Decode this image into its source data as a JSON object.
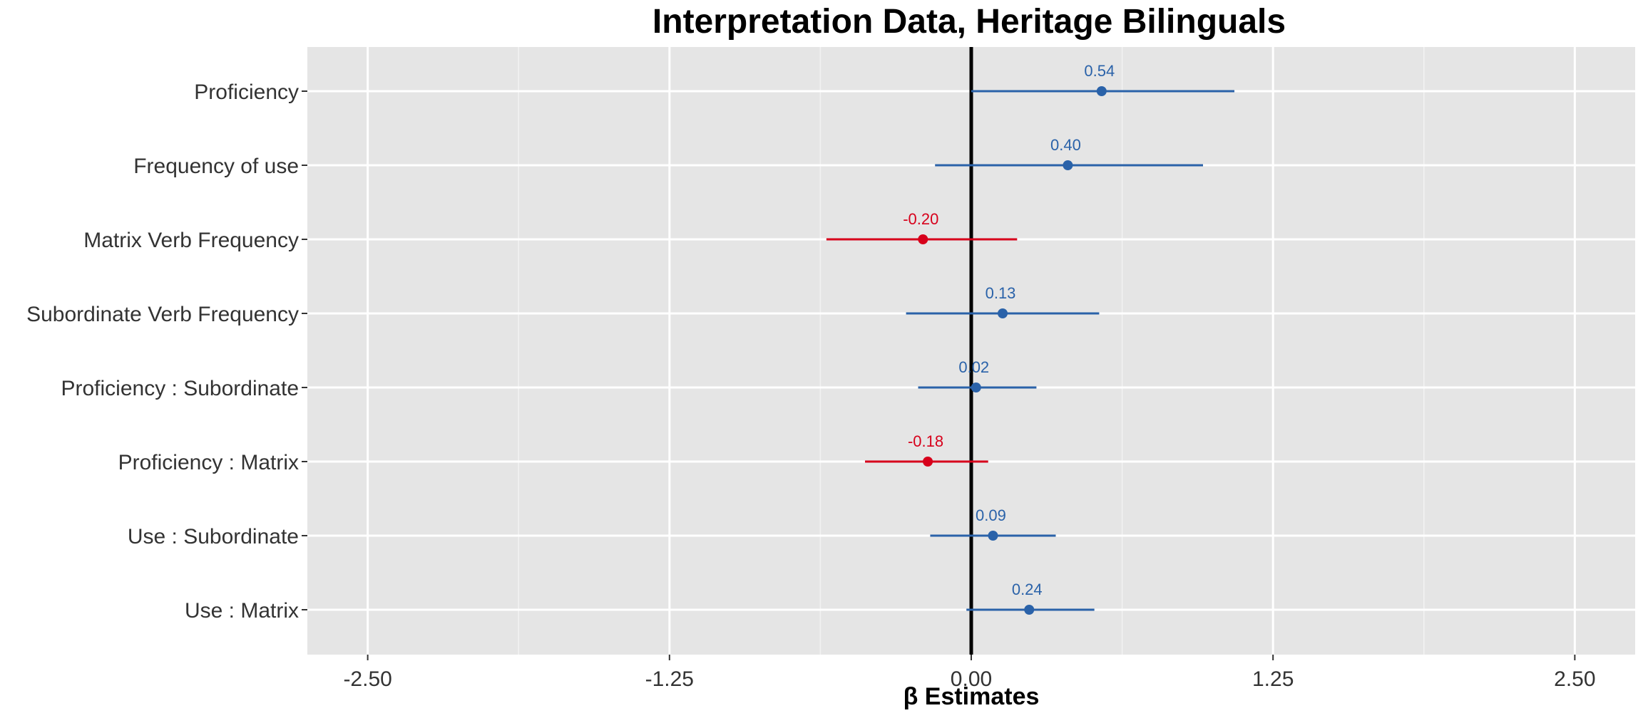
{
  "chart_data": {
    "type": "scatter",
    "subtype": "coefficient-plot",
    "title": "Interpretation Data, Heritage Bilinguals",
    "xlabel": "β Estimates",
    "ylabel": "",
    "xlim": [
      -2.75,
      2.75
    ],
    "xticks": [
      -2.5,
      -1.25,
      0,
      1.25,
      2.5
    ],
    "xtick_labels": [
      "-2.50",
      "-1.25",
      "0.00",
      "1.25",
      "2.50"
    ],
    "reference_line": 0,
    "grid": true,
    "legend": "none",
    "colors": {
      "positive": "#2a62a9",
      "negative": "#d7001b",
      "panel": "#e5e5e5",
      "grid": "#ffffff"
    },
    "series": [
      {
        "label": "Proficiency",
        "estimate": 0.54,
        "ci": [
          0.0,
          1.09
        ],
        "estimate_label": "0.54"
      },
      {
        "label": "Frequency of use",
        "estimate": 0.4,
        "ci": [
          -0.15,
          0.96
        ],
        "estimate_label": "0.40"
      },
      {
        "label": "Matrix Verb Frequency",
        "estimate": -0.2,
        "ci": [
          -0.6,
          0.19
        ],
        "estimate_label": "-0.20"
      },
      {
        "label": "Subordinate Verb Frequency",
        "estimate": 0.13,
        "ci": [
          -0.27,
          0.53
        ],
        "estimate_label": "0.13"
      },
      {
        "label": "Proficiency : Subordinate",
        "estimate": 0.02,
        "ci": [
          -0.22,
          0.27
        ],
        "estimate_label": "0.02"
      },
      {
        "label": "Proficiency : Matrix",
        "estimate": -0.18,
        "ci": [
          -0.44,
          0.07
        ],
        "estimate_label": "-0.18"
      },
      {
        "label": "Use : Subordinate",
        "estimate": 0.09,
        "ci": [
          -0.17,
          0.35
        ],
        "estimate_label": "0.09"
      },
      {
        "label": "Use : Matrix",
        "estimate": 0.24,
        "ci": [
          -0.02,
          0.51
        ],
        "estimate_label": "0.24"
      }
    ]
  }
}
